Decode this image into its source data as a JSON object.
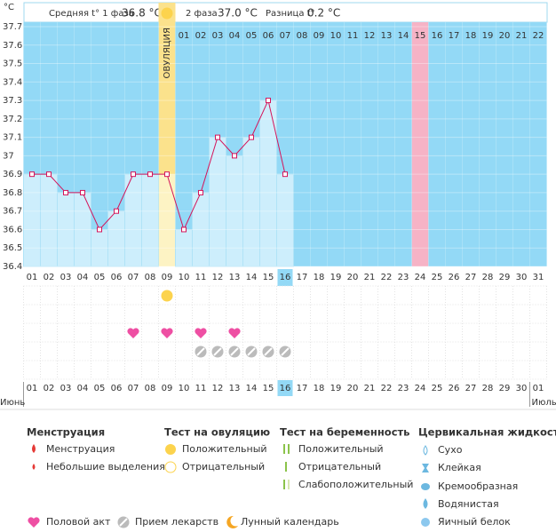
{
  "header": {
    "phase1_label": "Средняя t° 1 фаза",
    "phase1_value": "36.8 °C",
    "phase2_label": "2 фаза",
    "phase2_value": "37.0 °C",
    "diff_label": "Разница t°",
    "diff_value": "0.2 °C"
  },
  "chart_data": {
    "type": "line",
    "unit": "°C",
    "ovulation_label": "ОВУЛЯЦИЯ",
    "categories": [
      "01",
      "02",
      "03",
      "04",
      "05",
      "06",
      "07",
      "08",
      "09",
      "10",
      "11",
      "12",
      "13",
      "14",
      "15",
      "16",
      "17",
      "18",
      "19",
      "20",
      "21",
      "22",
      "23",
      "24",
      "25",
      "26",
      "27",
      "28",
      "29",
      "30",
      "31"
    ],
    "values": [
      36.9,
      36.9,
      36.8,
      36.8,
      36.6,
      36.7,
      36.9,
      36.9,
      36.9,
      36.6,
      36.8,
      37.1,
      37.0,
      37.1,
      37.3,
      36.9,
      null,
      null,
      null,
      null,
      null,
      null,
      null,
      null,
      null,
      null,
      null,
      null,
      null,
      null,
      null
    ],
    "color": "#d4145a",
    "ylim": [
      36.4,
      37.7
    ],
    "yticks": [
      36.4,
      36.5,
      36.6,
      36.7,
      36.8,
      36.9,
      37,
      37.1,
      37.2,
      37.3,
      37.4,
      37.5,
      37.6,
      37.7
    ],
    "grid": true,
    "ovulation_day": "09",
    "today": "16",
    "pink_day": "24",
    "phase2_days": [
      "01",
      "02",
      "03",
      "04",
      "05",
      "06",
      "07",
      "08",
      "09",
      "10",
      "11",
      "12",
      "13",
      "14",
      "15",
      "16",
      "17",
      "18",
      "19",
      "20",
      "21",
      "22"
    ],
    "ovulation_test_positive": [
      "09"
    ],
    "intercourse": [
      "07",
      "09",
      "11",
      "13"
    ],
    "medication": [
      "11",
      "12",
      "13",
      "14",
      "15",
      "16"
    ]
  },
  "calendar": {
    "dates": [
      "01",
      "02",
      "03",
      "04",
      "05",
      "06",
      "07",
      "08",
      "09",
      "10",
      "11",
      "12",
      "13",
      "14",
      "15",
      "16",
      "17",
      "18",
      "19",
      "20",
      "21",
      "22",
      "23",
      "24",
      "25",
      "26",
      "27",
      "28",
      "29",
      "30",
      "01"
    ],
    "weekend": [
      true,
      false,
      false,
      false,
      false,
      false,
      true,
      true,
      false,
      false,
      false,
      false,
      false,
      true,
      true,
      false,
      false,
      false,
      false,
      false,
      true,
      true,
      false,
      false,
      false,
      false,
      false,
      true,
      true,
      false,
      false
    ],
    "month_start": "Июнь",
    "month_end": "Июль"
  },
  "legend": {
    "menstruation": {
      "title": "Менструация",
      "items": [
        "Менструация",
        "Небольшие выделения"
      ]
    },
    "ovulation_test": {
      "title": "Тест на овуляцию",
      "items": [
        "Положительный",
        "Отрицательный"
      ]
    },
    "pregnancy_test": {
      "title": "Тест на беременность",
      "items": [
        "Положительный",
        "Отрицательный",
        "Слабоположительный"
      ]
    },
    "cervical": {
      "title": "Цервикальная жидкость",
      "items": [
        "Сухо",
        "Клейкая",
        "Кремообразная",
        "Водянистая",
        "Яичный белок"
      ]
    },
    "bottom": [
      "Половой акт",
      "Прием лекарств",
      "Лунный календарь"
    ]
  }
}
